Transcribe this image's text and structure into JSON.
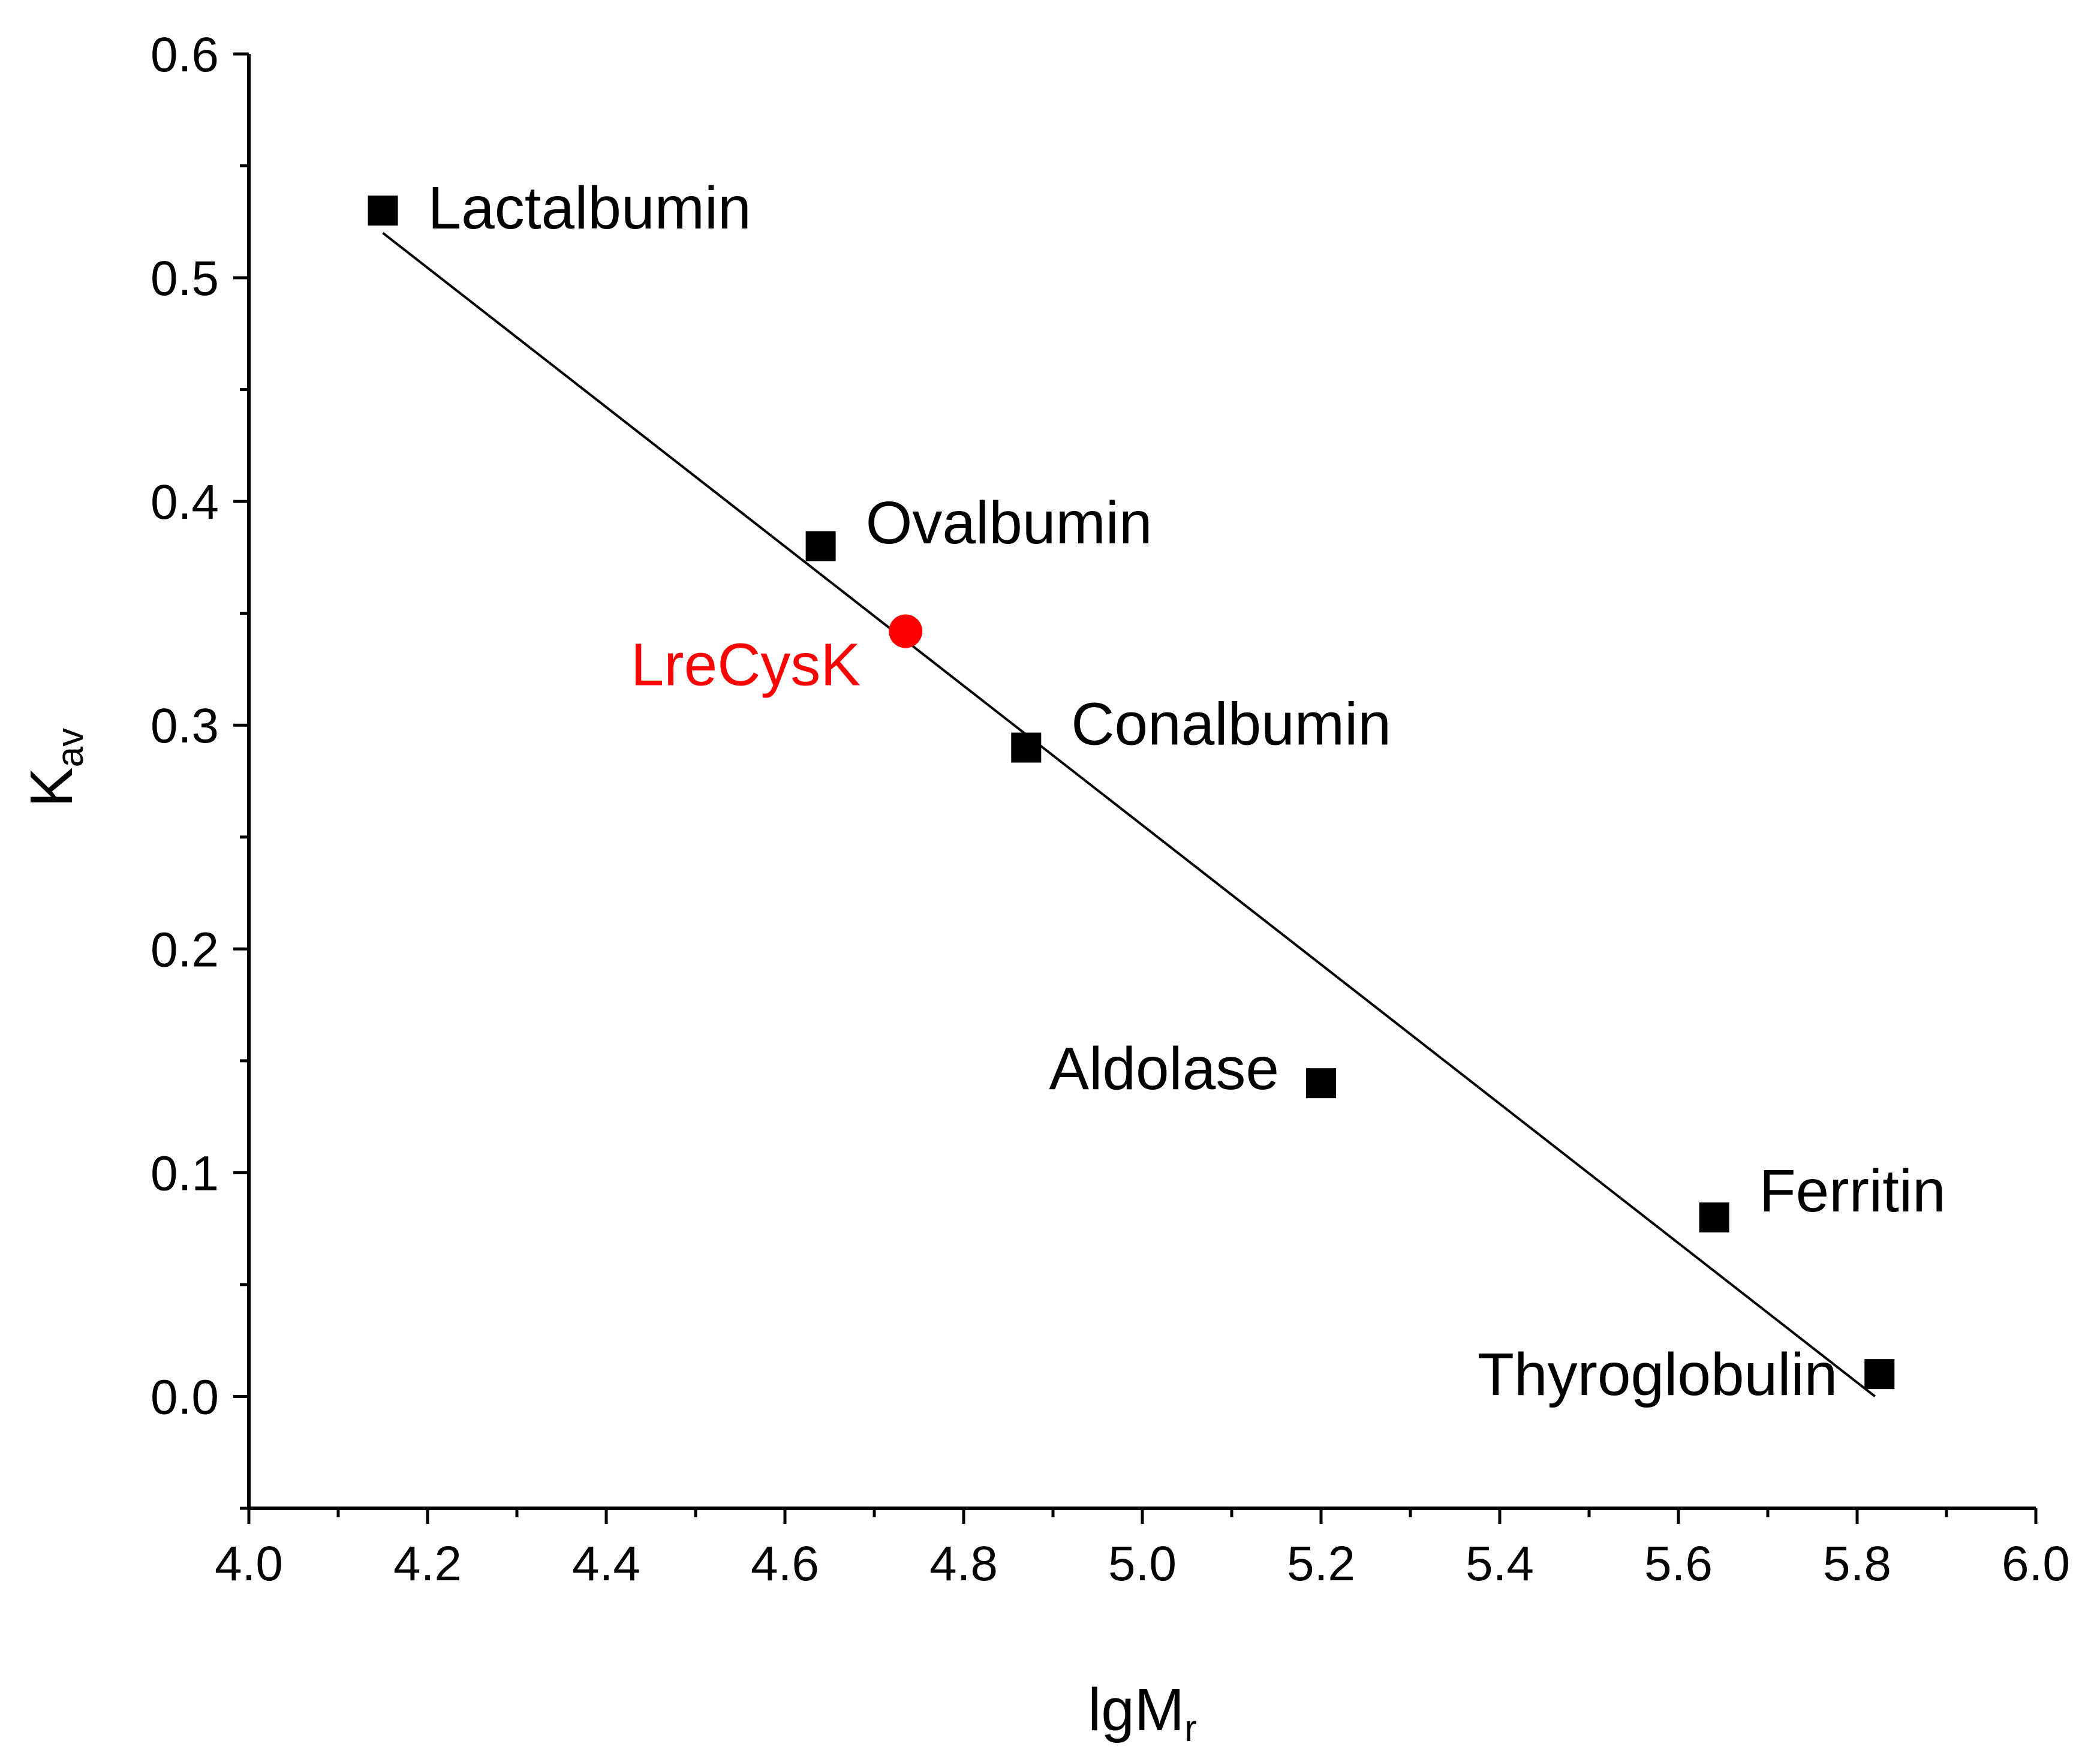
{
  "chart_data": {
    "type": "scatter",
    "xlabel": "lgM",
    "xlabel_sub": "r",
    "ylabel": "K",
    "ylabel_sub": "av",
    "xlim": [
      4.0,
      6.0
    ],
    "ylim": [
      -0.05,
      0.6
    ],
    "x_ticks": [
      4.0,
      4.2,
      4.4,
      4.6,
      4.8,
      5.0,
      5.2,
      5.4,
      5.6,
      5.8,
      6.0
    ],
    "x_tick_labels": [
      "4.0",
      "4.2",
      "4.4",
      "4.6",
      "4.8",
      "5.0",
      "5.2",
      "5.4",
      "5.6",
      "5.8",
      "6.0"
    ],
    "y_ticks": [
      0.0,
      0.1,
      0.2,
      0.3,
      0.4,
      0.5,
      0.6
    ],
    "y_tick_labels": [
      "0.0",
      "0.1",
      "0.2",
      "0.3",
      "0.4",
      "0.5",
      "0.6"
    ],
    "grid": false,
    "standards": [
      {
        "name": "Lactalbumin",
        "x": 4.15,
        "y": 0.53,
        "label_side": "right"
      },
      {
        "name": "Ovalbumin",
        "x": 4.64,
        "y": 0.38,
        "label_side": "right"
      },
      {
        "name": "Conalbumin",
        "x": 4.87,
        "y": 0.29,
        "label_side": "right"
      },
      {
        "name": "Aldolase",
        "x": 5.2,
        "y": 0.14,
        "label_side": "left"
      },
      {
        "name": "Ferritin",
        "x": 5.64,
        "y": 0.08,
        "label_side": "right"
      },
      {
        "name": "Thyroglobulin",
        "x": 5.825,
        "y": 0.01,
        "label_side": "left"
      }
    ],
    "sample": {
      "name": "LreCysK",
      "x": 4.735,
      "y": 0.342,
      "label_side": "left",
      "color": "#ff0000"
    },
    "fit_line": {
      "x": [
        4.15,
        5.82
      ],
      "y": [
        0.52,
        0.0
      ]
    },
    "colors": {
      "standard": "#000000",
      "sample": "#ff0000",
      "axis": "#000000"
    }
  }
}
